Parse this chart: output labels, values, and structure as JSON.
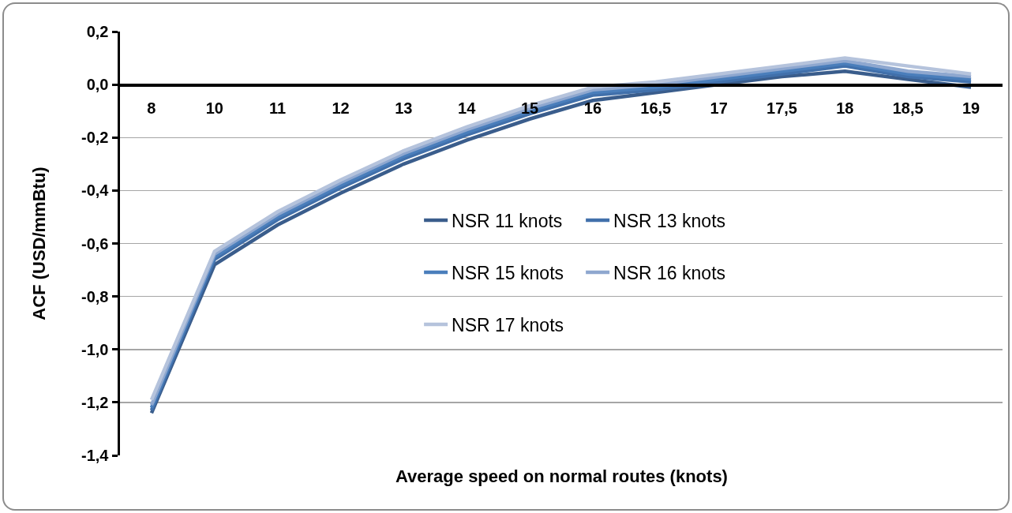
{
  "chart_data": {
    "type": "line",
    "xlabel": "Average speed on normal routes (knots)",
    "ylabel": "ACF (USD/mmBtu)",
    "categories": [
      "8",
      "10",
      "11",
      "12",
      "13",
      "14",
      "15",
      "16",
      "16,5",
      "17",
      "17,5",
      "18",
      "18,5",
      "19"
    ],
    "series": [
      {
        "name": "NSR 11 knots",
        "color": "#3a5d8c",
        "values": [
          -1.24,
          -0.68,
          -0.53,
          -0.41,
          -0.3,
          -0.21,
          -0.13,
          -0.06,
          -0.03,
          0.0,
          0.03,
          0.05,
          0.02,
          -0.01
        ]
      },
      {
        "name": "NSR 13 knots",
        "color": "#4170ab",
        "values": [
          -1.23,
          -0.66,
          -0.51,
          -0.39,
          -0.28,
          -0.19,
          -0.11,
          -0.04,
          -0.02,
          0.01,
          0.04,
          0.07,
          0.03,
          0.01
        ]
      },
      {
        "name": "NSR 15 knots",
        "color": "#4a7ebb",
        "values": [
          -1.22,
          -0.65,
          -0.5,
          -0.38,
          -0.27,
          -0.18,
          -0.1,
          -0.03,
          -0.01,
          0.02,
          0.05,
          0.08,
          0.04,
          0.02
        ]
      },
      {
        "name": "NSR 16 knots",
        "color": "#8ea7cf",
        "values": [
          -1.21,
          -0.64,
          -0.49,
          -0.37,
          -0.26,
          -0.17,
          -0.09,
          -0.02,
          0.0,
          0.03,
          0.06,
          0.09,
          0.05,
          0.03
        ]
      },
      {
        "name": "NSR 17 knots",
        "color": "#b5c3dc",
        "values": [
          -1.19,
          -0.63,
          -0.48,
          -0.36,
          -0.25,
          -0.16,
          -0.08,
          -0.01,
          0.01,
          0.04,
          0.07,
          0.1,
          0.07,
          0.04
        ]
      }
    ],
    "ylim": [
      -1.4,
      0.2
    ],
    "yticks": [
      {
        "value": -1.4,
        "label": "-1,4"
      },
      {
        "value": -1.2,
        "label": "-1,2"
      },
      {
        "value": -1.0,
        "label": "-1,0"
      },
      {
        "value": -0.8,
        "label": "-0,8"
      },
      {
        "value": -0.6,
        "label": "-0,6"
      },
      {
        "value": -0.4,
        "label": "-0,4"
      },
      {
        "value": -0.2,
        "label": "-0,2"
      },
      {
        "value": 0,
        "label": "0,0"
      },
      {
        "value": 0.2,
        "label": "0,2"
      }
    ],
    "grid": "y",
    "legend": "center",
    "marker": "none",
    "line_style": "solid"
  }
}
